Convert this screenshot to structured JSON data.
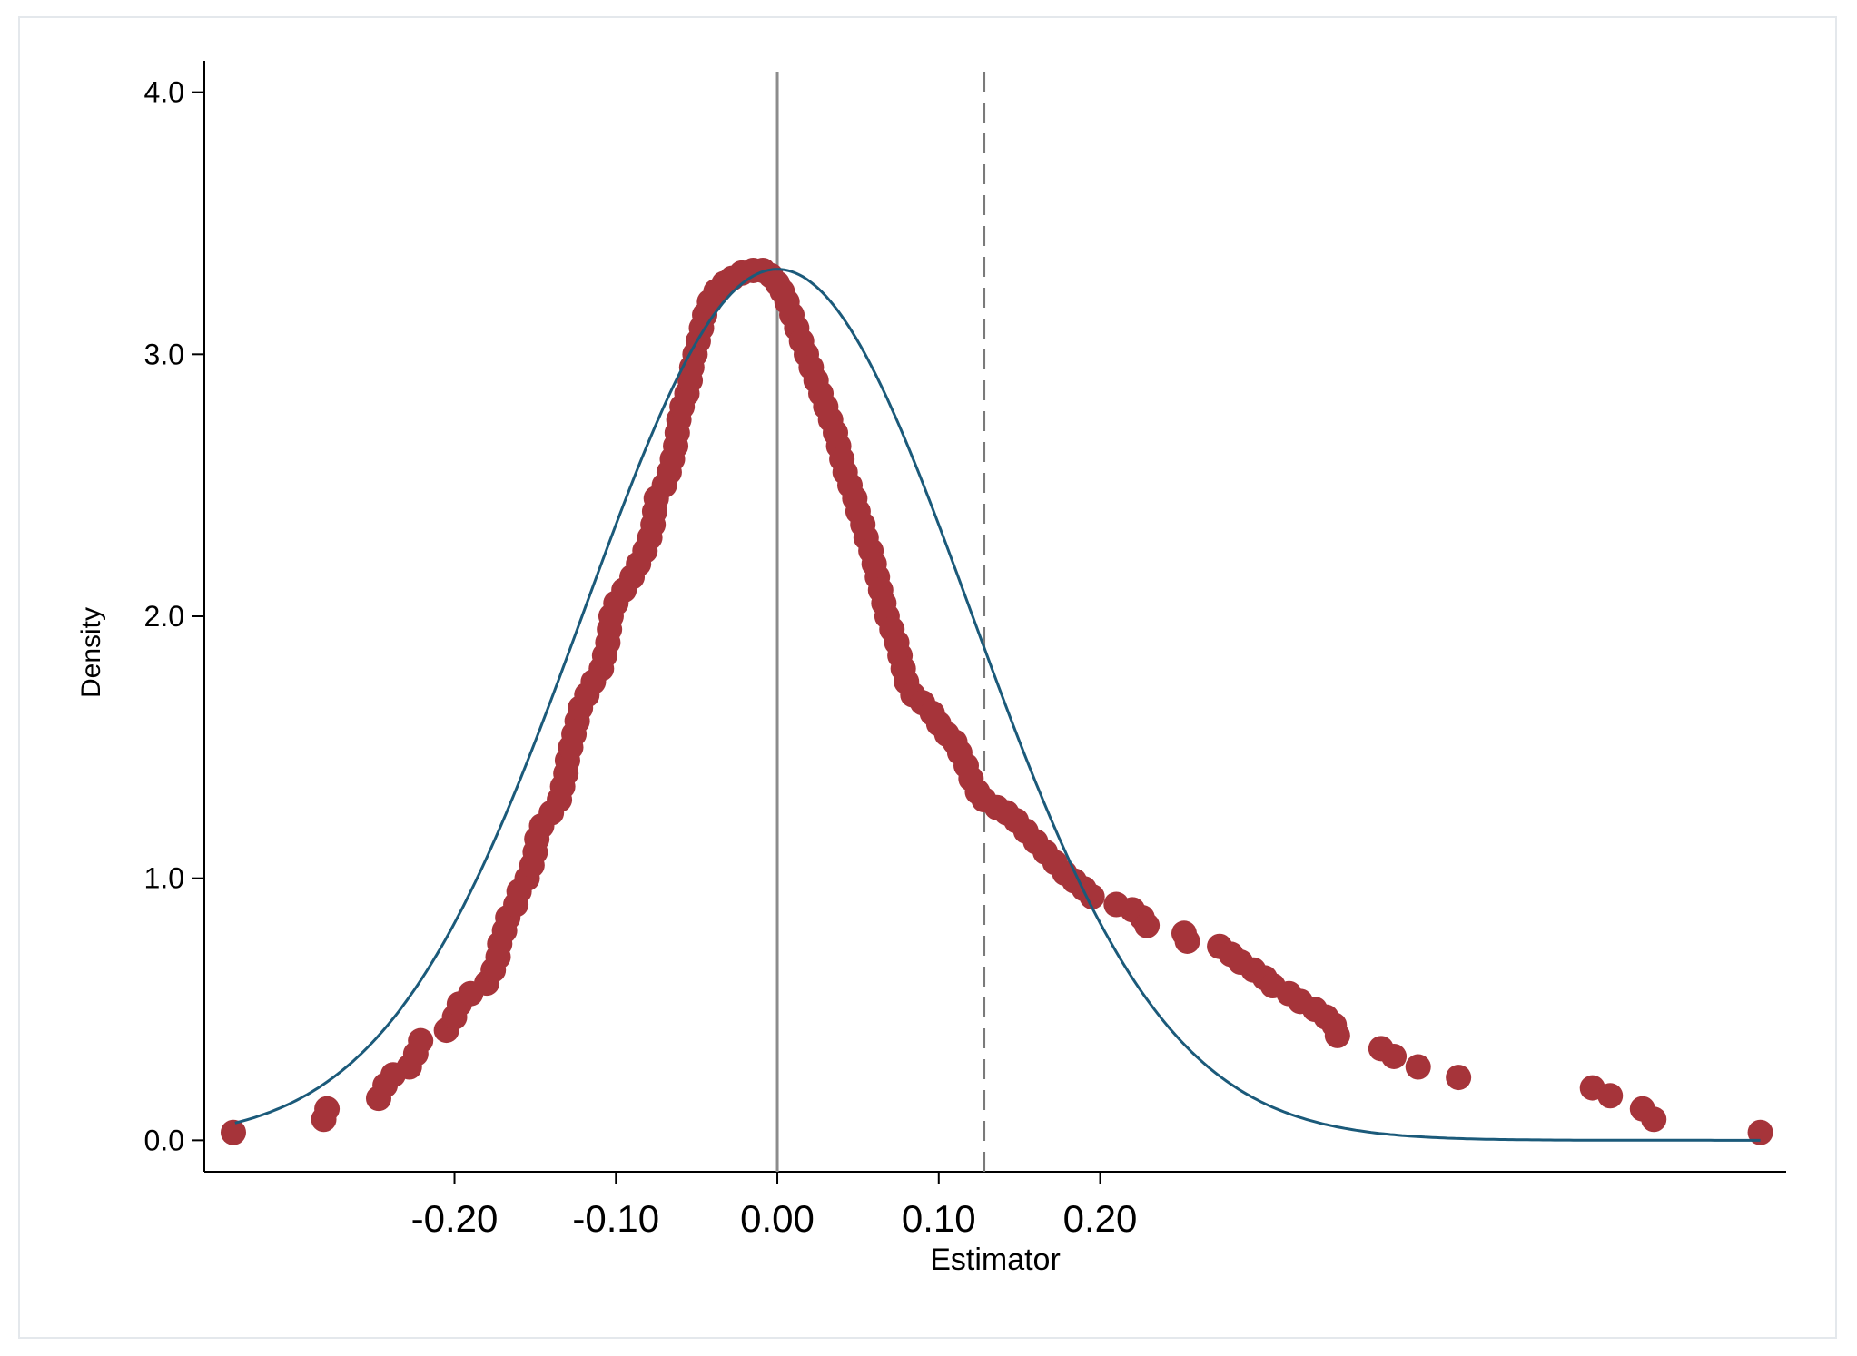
{
  "chart_data": {
    "type": "scatter",
    "title": "",
    "xlabel": "Estimator",
    "ylabel": "Density",
    "x_ticks": [
      -0.2,
      -0.1,
      0.0,
      0.1,
      0.2
    ],
    "x_tick_labels": [
      "-0.20",
      "-0.10",
      "0.00",
      "0.10",
      "0.20"
    ],
    "y_ticks": [
      0,
      1,
      2,
      3,
      4
    ],
    "y_tick_labels": [
      "0.0",
      "1.0",
      "2.0",
      "3.0",
      "4.0"
    ],
    "xlim": [
      -0.355,
      0.625
    ],
    "ylim": [
      -0.12,
      4.12
    ],
    "grid": false,
    "legend": "none",
    "reference_lines": [
      {
        "x": 0.0,
        "style": "solid",
        "color": "#8c8c8c"
      },
      {
        "x": 0.128,
        "style": "dashed",
        "color": "#7a7a7a"
      }
    ],
    "series": [
      {
        "type": "scatter",
        "color": "#a6343a",
        "points": [
          [
            -0.337,
            0.03
          ],
          [
            -0.281,
            0.08
          ],
          [
            -0.279,
            0.12
          ],
          [
            -0.247,
            0.16
          ],
          [
            -0.243,
            0.21
          ],
          [
            -0.238,
            0.25
          ],
          [
            -0.228,
            0.28
          ],
          [
            -0.224,
            0.33
          ],
          [
            -0.221,
            0.38
          ],
          [
            -0.205,
            0.42
          ],
          [
            -0.2,
            0.47
          ],
          [
            -0.197,
            0.52
          ],
          [
            -0.19,
            0.56
          ],
          [
            -0.18,
            0.6
          ],
          [
            -0.176,
            0.65
          ],
          [
            -0.173,
            0.7
          ],
          [
            -0.172,
            0.75
          ],
          [
            -0.169,
            0.8
          ],
          [
            -0.167,
            0.85
          ],
          [
            -0.162,
            0.9
          ],
          [
            -0.16,
            0.95
          ],
          [
            -0.155,
            1.0
          ],
          [
            -0.152,
            1.05
          ],
          [
            -0.15,
            1.1
          ],
          [
            -0.149,
            1.15
          ],
          [
            -0.146,
            1.2
          ],
          [
            -0.14,
            1.25
          ],
          [
            -0.135,
            1.3
          ],
          [
            -0.133,
            1.35
          ],
          [
            -0.131,
            1.4
          ],
          [
            -0.13,
            1.45
          ],
          [
            -0.128,
            1.5
          ],
          [
            -0.126,
            1.55
          ],
          [
            -0.124,
            1.6
          ],
          [
            -0.122,
            1.65
          ],
          [
            -0.118,
            1.7
          ],
          [
            -0.114,
            1.75
          ],
          [
            -0.109,
            1.8
          ],
          [
            -0.107,
            1.85
          ],
          [
            -0.105,
            1.9
          ],
          [
            -0.104,
            1.95
          ],
          [
            -0.103,
            2.0
          ],
          [
            -0.1,
            2.05
          ],
          [
            -0.095,
            2.1
          ],
          [
            -0.09,
            2.15
          ],
          [
            -0.086,
            2.2
          ],
          [
            -0.082,
            2.25
          ],
          [
            -0.079,
            2.3
          ],
          [
            -0.077,
            2.35
          ],
          [
            -0.076,
            2.4
          ],
          [
            -0.075,
            2.45
          ],
          [
            -0.07,
            2.5
          ],
          [
            -0.067,
            2.55
          ],
          [
            -0.065,
            2.6
          ],
          [
            -0.063,
            2.65
          ],
          [
            -0.062,
            2.7
          ],
          [
            -0.061,
            2.75
          ],
          [
            -0.059,
            2.8
          ],
          [
            -0.056,
            2.85
          ],
          [
            -0.054,
            2.9
          ],
          [
            -0.053,
            2.95
          ],
          [
            -0.051,
            3.0
          ],
          [
            -0.049,
            3.05
          ],
          [
            -0.047,
            3.1
          ],
          [
            -0.045,
            3.15
          ],
          [
            -0.042,
            3.2
          ],
          [
            -0.038,
            3.24
          ],
          [
            -0.033,
            3.27
          ],
          [
            -0.028,
            3.29
          ],
          [
            -0.022,
            3.31
          ],
          [
            -0.015,
            3.32
          ],
          [
            -0.009,
            3.32
          ],
          [
            -0.004,
            3.3
          ],
          [
            0.0,
            3.27
          ],
          [
            0.003,
            3.24
          ],
          [
            0.006,
            3.2
          ],
          [
            0.009,
            3.15
          ],
          [
            0.012,
            3.1
          ],
          [
            0.015,
            3.05
          ],
          [
            0.018,
            3.0
          ],
          [
            0.021,
            2.95
          ],
          [
            0.024,
            2.9
          ],
          [
            0.027,
            2.85
          ],
          [
            0.03,
            2.8
          ],
          [
            0.033,
            2.75
          ],
          [
            0.036,
            2.7
          ],
          [
            0.038,
            2.65
          ],
          [
            0.04,
            2.6
          ],
          [
            0.042,
            2.55
          ],
          [
            0.045,
            2.5
          ],
          [
            0.048,
            2.45
          ],
          [
            0.05,
            2.4
          ],
          [
            0.053,
            2.35
          ],
          [
            0.055,
            2.3
          ],
          [
            0.058,
            2.25
          ],
          [
            0.06,
            2.2
          ],
          [
            0.062,
            2.15
          ],
          [
            0.064,
            2.1
          ],
          [
            0.066,
            2.05
          ],
          [
            0.068,
            2.0
          ],
          [
            0.071,
            1.95
          ],
          [
            0.074,
            1.9
          ],
          [
            0.076,
            1.85
          ],
          [
            0.078,
            1.8
          ],
          [
            0.08,
            1.75
          ],
          [
            0.084,
            1.7
          ],
          [
            0.09,
            1.67
          ],
          [
            0.096,
            1.63
          ],
          [
            0.1,
            1.59
          ],
          [
            0.105,
            1.55
          ],
          [
            0.11,
            1.52
          ],
          [
            0.113,
            1.48
          ],
          [
            0.117,
            1.43
          ],
          [
            0.12,
            1.38
          ],
          [
            0.124,
            1.33
          ],
          [
            0.128,
            1.3
          ],
          [
            0.136,
            1.27
          ],
          [
            0.142,
            1.25
          ],
          [
            0.148,
            1.22
          ],
          [
            0.154,
            1.18
          ],
          [
            0.16,
            1.14
          ],
          [
            0.166,
            1.1
          ],
          [
            0.172,
            1.06
          ],
          [
            0.178,
            1.02
          ],
          [
            0.184,
            0.99
          ],
          [
            0.19,
            0.96
          ],
          [
            0.195,
            0.93
          ],
          [
            0.21,
            0.9
          ],
          [
            0.22,
            0.88
          ],
          [
            0.226,
            0.85
          ],
          [
            0.229,
            0.82
          ],
          [
            0.252,
            0.79
          ],
          [
            0.254,
            0.76
          ],
          [
            0.274,
            0.74
          ],
          [
            0.281,
            0.71
          ],
          [
            0.287,
            0.68
          ],
          [
            0.295,
            0.65
          ],
          [
            0.302,
            0.62
          ],
          [
            0.307,
            0.59
          ],
          [
            0.317,
            0.56
          ],
          [
            0.324,
            0.53
          ],
          [
            0.333,
            0.5
          ],
          [
            0.34,
            0.47
          ],
          [
            0.345,
            0.44
          ],
          [
            0.347,
            0.4
          ],
          [
            0.374,
            0.35
          ],
          [
            0.382,
            0.32
          ],
          [
            0.397,
            0.28
          ],
          [
            0.422,
            0.24
          ],
          [
            0.505,
            0.2
          ],
          [
            0.516,
            0.17
          ],
          [
            0.536,
            0.12
          ],
          [
            0.543,
            0.08
          ],
          [
            0.609,
            0.03
          ]
        ]
      },
      {
        "type": "line",
        "color": "#1b5a7a",
        "curve": "normal",
        "mean": 0.0,
        "sd": 0.12,
        "x_range": [
          -0.336,
          0.609
        ]
      }
    ]
  }
}
